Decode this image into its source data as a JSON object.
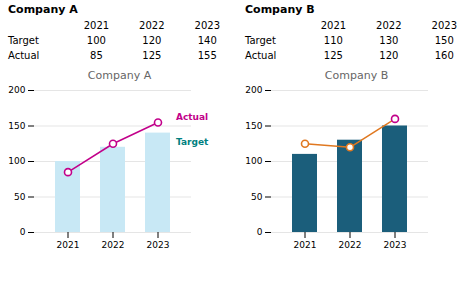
{
  "chart_data": [
    {
      "type": "bar",
      "title": "Company A",
      "categories": [
        "2021",
        "2022",
        "2023"
      ],
      "series": [
        {
          "name": "Target",
          "type": "bar",
          "color": "#c8e8f5",
          "values": [
            100,
            120,
            140
          ]
        },
        {
          "name": "Actual",
          "type": "line",
          "color": "#c2008a",
          "marker": "circle",
          "values": [
            85,
            125,
            155
          ]
        }
      ],
      "ylim": [
        0,
        200
      ],
      "yticks": [
        0,
        50,
        100,
        150,
        200
      ],
      "grid": true,
      "annotations": [
        {
          "text": "Actual",
          "color": "#c2008a"
        },
        {
          "text": "Target",
          "color": "#008080"
        }
      ]
    },
    {
      "type": "bar",
      "title": "Company B",
      "categories": [
        "2021",
        "2022",
        "2023"
      ],
      "series": [
        {
          "name": "Target",
          "type": "bar",
          "color": "#1b5e7b",
          "values": [
            110,
            130,
            150
          ]
        },
        {
          "name": "Actual",
          "type": "line",
          "color": "#e07820",
          "colors": [
            "#e07820",
            "#e07820",
            "#c2008a"
          ],
          "marker": "circle",
          "values": [
            125,
            120,
            160
          ]
        }
      ],
      "ylim": [
        0,
        200
      ],
      "yticks": [
        0,
        50,
        100,
        150,
        200
      ],
      "grid": true
    }
  ]
}
